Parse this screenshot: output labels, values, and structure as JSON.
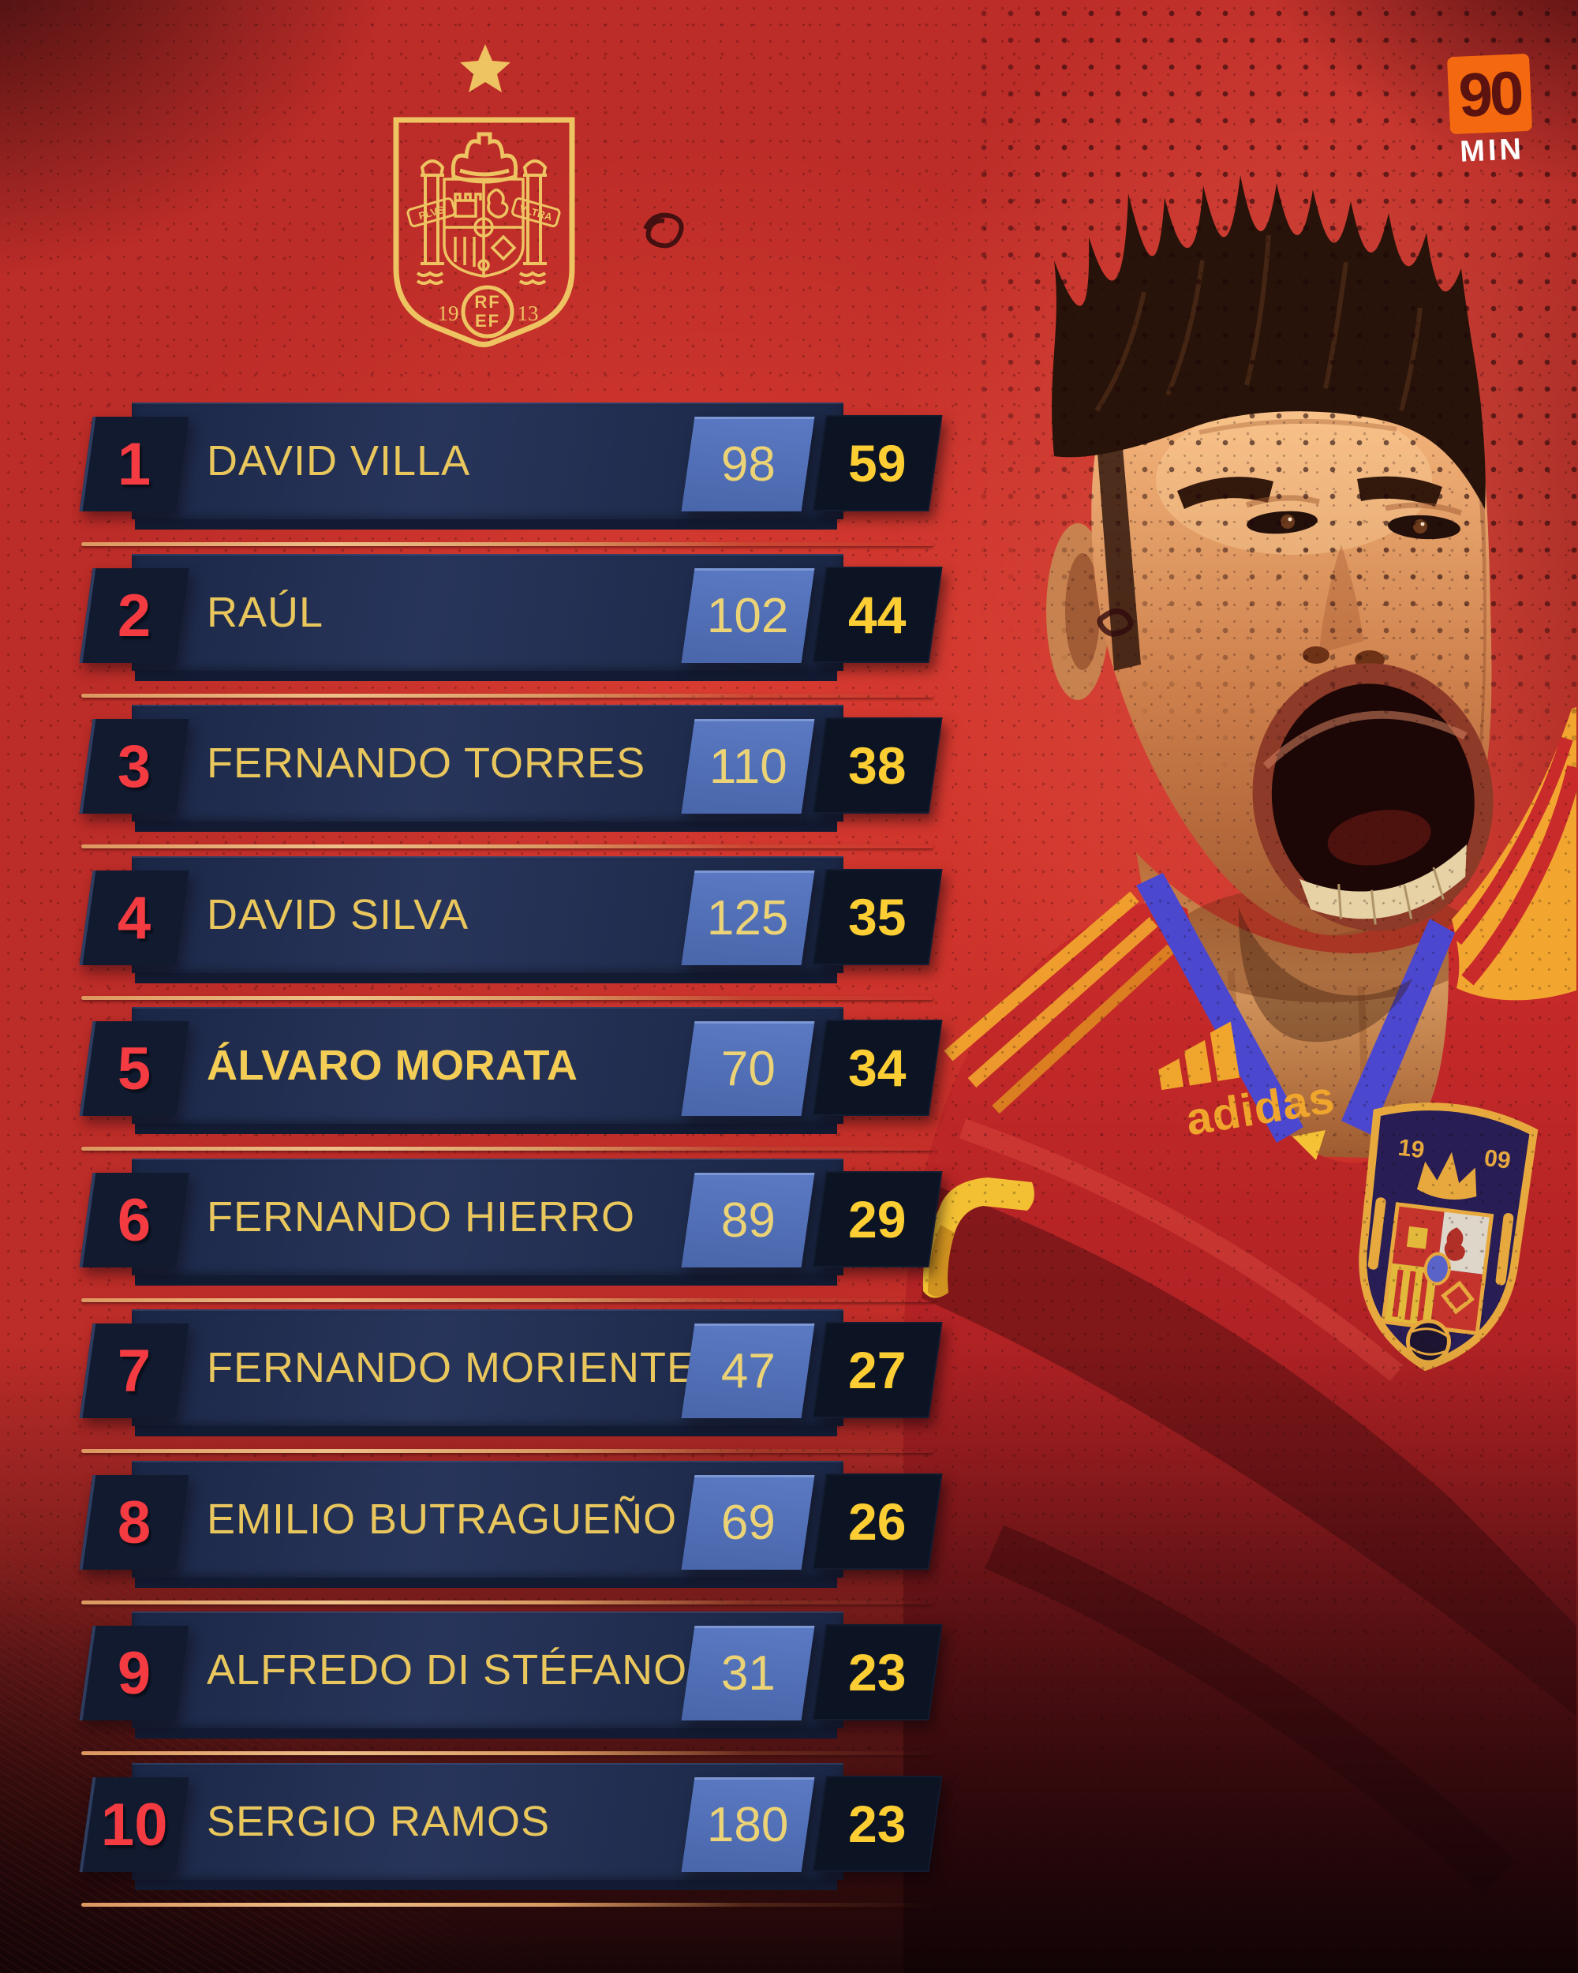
{
  "brand": {
    "num": "90",
    "min": "MIN"
  },
  "rfef_crest": {
    "year_left": "19",
    "year_right": "13",
    "monogram_line1": "RF",
    "monogram_line2": "EF",
    "motto_left": "PLVS",
    "motto_right": "VLTRA"
  },
  "jersey": {
    "adidas_wordmark": "adidas",
    "crest_year_left": "19",
    "crest_year_right": "09"
  },
  "colors": {
    "background_red": "#c33028",
    "row_bar_navy": "#1f2b4c",
    "rank_red": "#f43b41",
    "name_gold": "#e9c75d",
    "caps_blue": "#4f6cb3",
    "caps_text": "#ecd376",
    "goals_navy": "#0c1323",
    "goals_yellow": "#fcce33",
    "separator_tan": "#e09a62",
    "logo_orange": "#f4690f"
  },
  "players": [
    {
      "rank": "1",
      "name": "DAVID VILLA",
      "caps": "98",
      "goals": "59",
      "highlight": false
    },
    {
      "rank": "2",
      "name": "RAÚL",
      "caps": "102",
      "goals": "44",
      "highlight": false
    },
    {
      "rank": "3",
      "name": "FERNANDO TORRES",
      "caps": "110",
      "goals": "38",
      "highlight": false
    },
    {
      "rank": "4",
      "name": "DAVID SILVA",
      "caps": "125",
      "goals": "35",
      "highlight": false
    },
    {
      "rank": "5",
      "name": "ÁLVARO MORATA",
      "caps": "70",
      "goals": "34",
      "highlight": true
    },
    {
      "rank": "6",
      "name": "FERNANDO HIERRO",
      "caps": "89",
      "goals": "29",
      "highlight": false
    },
    {
      "rank": "7",
      "name": "FERNANDO MORIENTES",
      "caps": "47",
      "goals": "27",
      "highlight": false
    },
    {
      "rank": "8",
      "name": "EMILIO BUTRAGUEÑO",
      "caps": "69",
      "goals": "26",
      "highlight": false
    },
    {
      "rank": "9",
      "name": "ALFREDO DI STÉFANO",
      "caps": "31",
      "goals": "23",
      "highlight": false
    },
    {
      "rank": "10",
      "name": "SERGIO RAMOS",
      "caps": "180",
      "goals": "23",
      "highlight": false
    }
  ],
  "chart_data": {
    "type": "table",
    "columns": [
      "rank",
      "player",
      "caps",
      "goals"
    ],
    "rows": [
      [
        1,
        "DAVID VILLA",
        98,
        59
      ],
      [
        2,
        "RAÚL",
        102,
        44
      ],
      [
        3,
        "FERNANDO TORRES",
        110,
        38
      ],
      [
        4,
        "DAVID SILVA",
        125,
        35
      ],
      [
        5,
        "ÁLVARO MORATA",
        70,
        34
      ],
      [
        6,
        "FERNANDO HIERRO",
        89,
        29
      ],
      [
        7,
        "FERNANDO MORIENTES",
        47,
        27
      ],
      [
        8,
        "EMILIO BUTRAGUEÑO",
        69,
        26
      ],
      [
        9,
        "ALFREDO DI STÉFANO",
        31,
        23
      ],
      [
        10,
        "SERGIO RAMOS",
        180,
        23
      ]
    ],
    "legend_position": "none",
    "highlighted_row": 5
  }
}
